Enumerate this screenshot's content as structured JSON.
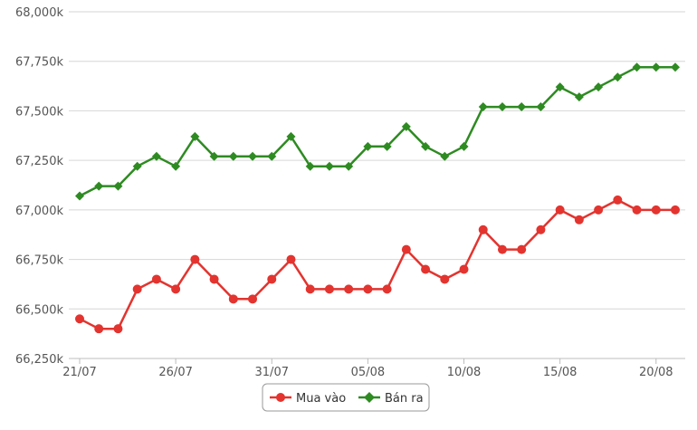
{
  "chart_data": {
    "type": "line",
    "x": [
      "21/07",
      "22/07",
      "23/07",
      "24/07",
      "25/07",
      "26/07",
      "27/07",
      "28/07",
      "29/07",
      "30/07",
      "31/07",
      "01/08",
      "02/08",
      "03/08",
      "04/08",
      "05/08",
      "06/08",
      "07/08",
      "08/08",
      "09/08",
      "10/08",
      "11/08",
      "12/08",
      "13/08",
      "14/08",
      "15/08",
      "16/08",
      "17/08",
      "18/08",
      "19/08",
      "20/08",
      "21/08"
    ],
    "x_tick_labels": [
      "21/07",
      "26/07",
      "31/07",
      "05/08",
      "10/08",
      "15/08",
      "20/08"
    ],
    "y_tick_labels": [
      "66,250k",
      "66,500k",
      "66,750k",
      "67,000k",
      "67,250k",
      "67,500k",
      "67,750k",
      "68,000k"
    ],
    "ylim": [
      66250,
      68000
    ],
    "grid": true,
    "legend_position": "bottom",
    "series": [
      {
        "name": "Mua vào",
        "color": "#e3342f",
        "marker": "circle",
        "values": [
          66450,
          66400,
          66400,
          66600,
          66650,
          66600,
          66750,
          66650,
          66550,
          66550,
          66650,
          66750,
          66600,
          66600,
          66600,
          66600,
          66600,
          66800,
          66700,
          66650,
          66700,
          66900,
          66800,
          66800,
          66900,
          67000,
          66950,
          67000,
          67050,
          67000,
          67000,
          67000
        ]
      },
      {
        "name": "Bán ra",
        "color": "#2e8b22",
        "marker": "diamond",
        "values": [
          67070,
          67120,
          67120,
          67220,
          67270,
          67220,
          67370,
          67270,
          67270,
          67270,
          67270,
          67370,
          67220,
          67220,
          67220,
          67320,
          67320,
          67420,
          67320,
          67270,
          67320,
          67520,
          67520,
          67520,
          67520,
          67620,
          67570,
          67620,
          67670,
          67720,
          67720,
          67720
        ]
      }
    ]
  }
}
